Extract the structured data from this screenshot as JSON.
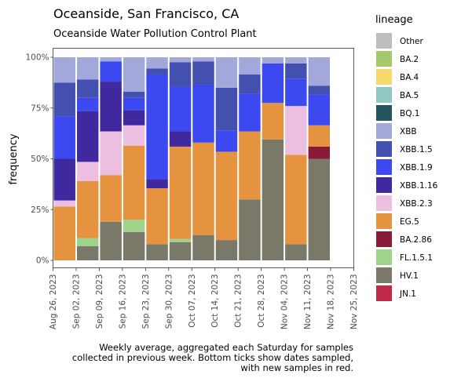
{
  "chart_data": {
    "type": "bar",
    "stacked": true,
    "title": "Oceanside, San Francisco, CA",
    "subtitle": "Oceanside Water Pollution Control Plant",
    "xlabel": "",
    "ylabel": "frequency",
    "ylim": [
      0,
      100
    ],
    "y_ticks": [
      "0%",
      "25%",
      "50%",
      "75%",
      "100%"
    ],
    "x_ticks": [
      "Aug 26, 2023",
      "Sep 02, 2023",
      "Sep 09, 2023",
      "Sep 16, 2023",
      "Sep 23, 2023",
      "Sep 30, 2023",
      "Oct 07, 2023",
      "Oct 14, 2023",
      "Oct 21, 2023",
      "Oct 28, 2023",
      "Nov 04, 2023",
      "Nov 11, 2023",
      "Nov 18, 2023",
      "Nov 25, 2023"
    ],
    "legend_title": "lineage",
    "legend_position": "right",
    "grid": false,
    "caption": [
      "Weekly average, aggregated each Saturday for samples",
      "collected in previous week. Bottom ticks show dates sampled,",
      "with new samples in red."
    ],
    "lineages": [
      {
        "name": "Other",
        "color": "#bdbdbd"
      },
      {
        "name": "BA.2",
        "color": "#a4c96b"
      },
      {
        "name": "BA.4",
        "color": "#f7d96b"
      },
      {
        "name": "BA.5",
        "color": "#8fc9c4"
      },
      {
        "name": "BQ.1",
        "color": "#22545e"
      },
      {
        "name": "XBB",
        "color": "#a2a8da"
      },
      {
        "name": "XBB.1.5",
        "color": "#4350b0"
      },
      {
        "name": "XBB.1.9",
        "color": "#3c49f0"
      },
      {
        "name": "XBB.1.16",
        "color": "#40299e"
      },
      {
        "name": "XBB.2.3",
        "color": "#ecbedf"
      },
      {
        "name": "EG.5",
        "color": "#e5933f"
      },
      {
        "name": "BA.2.86",
        "color": "#8b1a38"
      },
      {
        "name": "FL.1.5.1",
        "color": "#9dd38a"
      },
      {
        "name": "HV.1",
        "color": "#7a7868"
      },
      {
        "name": "JN.1",
        "color": "#bf2a48"
      }
    ],
    "weeks": [
      {
        "date": "Aug 26, 2023",
        "values": {
          "HV.1": 0,
          "FL.1.5.1": 0,
          "EG.5": 26.5,
          "XBB.2.3": 3,
          "XBB.1.16": 20.5,
          "XBB.1.9": 21,
          "XBB.1.5": 16.5,
          "XBB": 12.5
        }
      },
      {
        "date": "Sep 02, 2023",
        "values": {
          "HV.1": 7,
          "FL.1.5.1": 4,
          "EG.5": 28,
          "XBB.2.3": 9.5,
          "XBB.1.16": 25,
          "XBB.1.9": 6.5,
          "XBB.1.5": 9,
          "XBB": 11
        }
      },
      {
        "date": "Sep 09, 2023",
        "values": {
          "HV.1": 19,
          "FL.1.5.1": 0,
          "EG.5": 23,
          "XBB.2.3": 21.5,
          "XBB.1.16": 24.5,
          "XBB.1.9": 10,
          "XBB.1.5": 0,
          "XBB": 2
        }
      },
      {
        "date": "Sep 16, 2023",
        "values": {
          "HV.1": 14,
          "FL.1.5.1": 6,
          "EG.5": 36.5,
          "XBB.2.3": 10,
          "XBB.1.16": 7.5,
          "XBB.1.9": 6,
          "XBB.1.5": 3,
          "XBB": 17
        }
      },
      {
        "date": "Sep 23, 2023",
        "values": {
          "HV.1": 8,
          "FL.1.5.1": 0,
          "EG.5": 27.5,
          "XBB.2.3": 0,
          "XBB.1.16": 4.5,
          "XBB.1.9": 51.5,
          "XBB.1.5": 3,
          "XBB": 5.5
        }
      },
      {
        "date": "Sep 30, 2023",
        "values": {
          "HV.1": 9,
          "FL.1.5.1": 1.5,
          "EG.5": 45.5,
          "XBB.2.3": 0,
          "XBB.1.16": 7.5,
          "XBB.1.9": 22,
          "XBB.1.5": 12,
          "XBB": 2.5
        }
      },
      {
        "date": "Oct 07, 2023",
        "values": {
          "HV.1": 12.5,
          "FL.1.5.1": 0,
          "EG.5": 45.5,
          "XBB.2.3": 0,
          "XBB.1.16": 0,
          "XBB.1.9": 28.5,
          "XBB.1.5": 11.5,
          "XBB": 2
        }
      },
      {
        "date": "Oct 14, 2023",
        "values": {
          "HV.1": 10,
          "FL.1.5.1": 0,
          "EG.5": 43.5,
          "XBB.2.3": 0,
          "XBB.1.16": 0,
          "XBB.1.9": 10.5,
          "XBB.1.5": 21,
          "XBB": 15
        }
      },
      {
        "date": "Oct 21, 2023",
        "values": {
          "HV.1": 30,
          "FL.1.5.1": 0,
          "EG.5": 33.5,
          "XBB.2.3": 0,
          "XBB.1.16": 0,
          "XBB.1.9": 18.5,
          "XBB.1.5": 9.5,
          "XBB": 8.5
        }
      },
      {
        "date": "Oct 28, 2023",
        "values": {
          "HV.1": 59.5,
          "FL.1.5.1": 0,
          "EG.5": 18,
          "XBB.2.3": 0,
          "XBB.1.16": 0,
          "XBB.1.9": 19.5,
          "XBB.1.5": 0,
          "XBB": 3
        }
      },
      {
        "date": "Nov 04, 2023",
        "values": {
          "HV.1": 8,
          "FL.1.5.1": 0,
          "EG.5": 44,
          "XBB.2.3": 24,
          "XBB.1.16": 0,
          "XBB.1.9": 13.5,
          "XBB.1.5": 7.5,
          "XBB": 3
        }
      },
      {
        "date": "Nov 11, 2023",
        "values": {
          "HV.1": 50,
          "BA.2.86": 6,
          "FL.1.5.1": 0,
          "EG.5": 10.5,
          "XBB.2.3": 0,
          "XBB.1.16": 0,
          "XBB.1.9": 15,
          "XBB.1.5": 4.5,
          "XBB": 14
        }
      }
    ]
  }
}
